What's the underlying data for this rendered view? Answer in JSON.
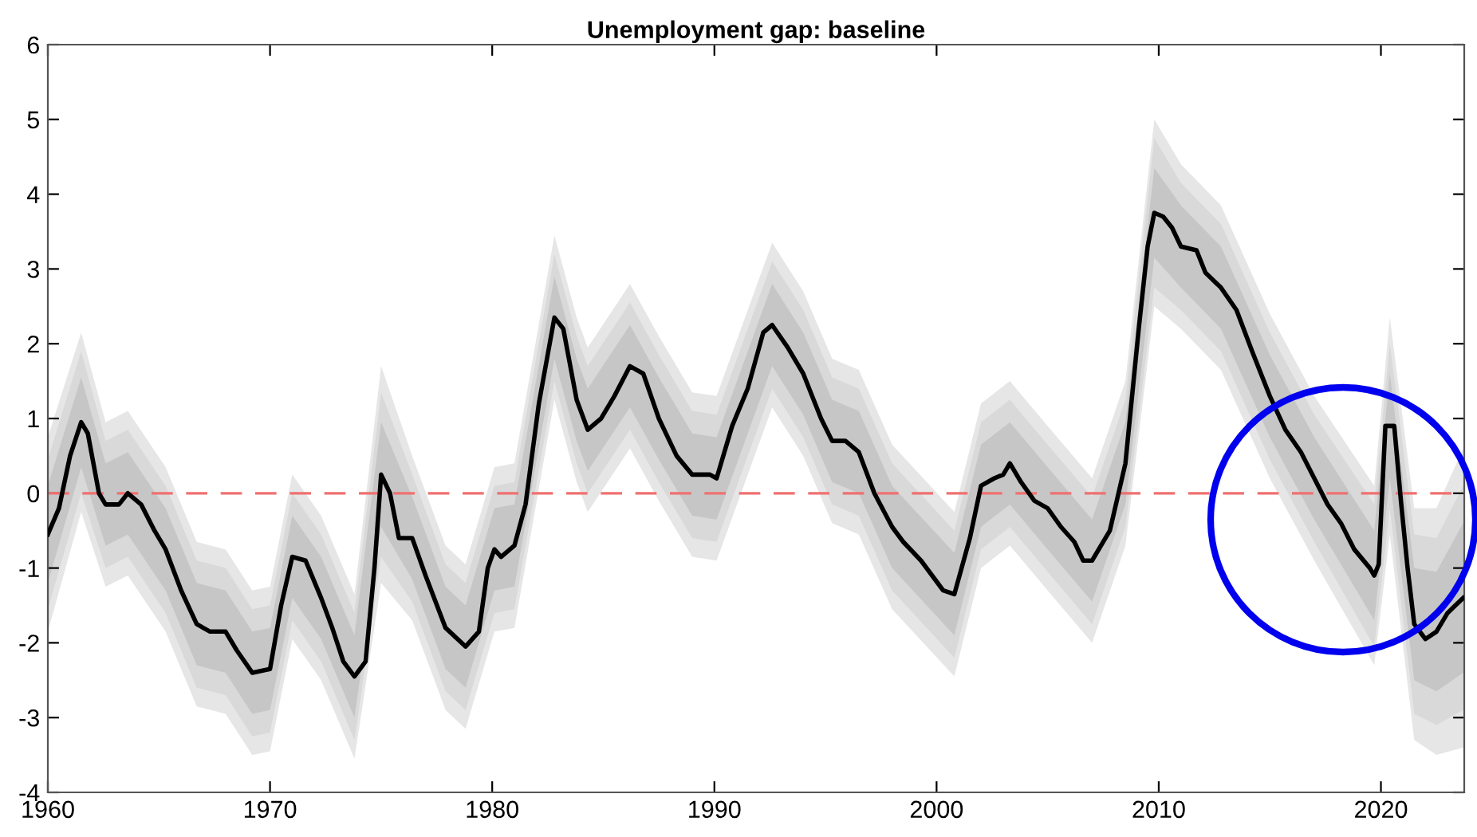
{
  "chart_data": {
    "type": "line",
    "title": "Unemployment gap: baseline",
    "xlim": [
      1960,
      2023.75
    ],
    "ylim": [
      -4,
      6
    ],
    "xticks": [
      1960,
      1970,
      1980,
      1990,
      2000,
      2010,
      2020
    ],
    "yticks": [
      -4,
      -3,
      -2,
      -1,
      0,
      1,
      2,
      3,
      4,
      5,
      6
    ],
    "grid": false,
    "marker": "none",
    "ref_lines": [
      {
        "axis": "y",
        "value": 0,
        "color": "#f07070",
        "line_style": "dashed"
      }
    ],
    "series": [
      {
        "type": "line",
        "color": "#e6e6e6",
        "x": [
          1960.0,
          1961.5,
          1962.6,
          1963.6,
          1965.3,
          1966.7,
          1968.0,
          1969.2,
          1970.0,
          1971.0,
          1972.3,
          1973.8,
          1975.0,
          1976.4,
          1977.9,
          1978.8,
          1980.1,
          1981.0,
          1982.8,
          1983.8,
          1984.3,
          1986.2,
          1987.5,
          1989.0,
          1990.1,
          1992.6,
          1994.0,
          1995.3,
          1996.5,
          1998.0,
          2000.8,
          2002.0,
          2003.3,
          2005.0,
          2007.0,
          2008.5,
          2009.8,
          2011.0,
          2012.8,
          2015.0,
          2017.0,
          2019.7,
          2020.4,
          2021.5,
          2022.5,
          2023.7
        ],
        "values": [
          null,
          null,
          null,
          null,
          null,
          null,
          null,
          null,
          null,
          null,
          null,
          null,
          null,
          null,
          null,
          null,
          null,
          null,
          null,
          null,
          null,
          null,
          null,
          null,
          null,
          null,
          null,
          null,
          null,
          null,
          null,
          null,
          null,
          null,
          null,
          null,
          null,
          null,
          null,
          null,
          null,
          null,
          null,
          null,
          null,
          null
        ],
        "upper": [
          0.75,
          2.15,
          0.95,
          1.1,
          0.35,
          -0.65,
          -0.75,
          -1.3,
          -1.25,
          0.25,
          -0.3,
          -1.35,
          1.7,
          0.5,
          -0.7,
          -0.95,
          0.35,
          0.4,
          3.45,
          2.35,
          1.95,
          2.8,
          2.1,
          1.35,
          1.3,
          3.35,
          2.7,
          1.8,
          1.65,
          0.65,
          -0.25,
          1.2,
          1.5,
          0.9,
          0.2,
          1.5,
          5.0,
          4.4,
          3.85,
          2.4,
          1.3,
          0.1,
          2.35,
          -0.2,
          -0.2,
          0.6
        ],
        "lower": [
          -1.85,
          -0.25,
          -1.25,
          -1.1,
          -1.85,
          -2.85,
          -2.95,
          -3.5,
          -3.45,
          -1.95,
          -2.5,
          -3.55,
          -1.2,
          -1.7,
          -2.9,
          -3.15,
          -1.85,
          -1.8,
          1.25,
          0.15,
          -0.25,
          0.6,
          -0.1,
          -0.85,
          -0.9,
          1.15,
          0.5,
          -0.4,
          -0.55,
          -1.55,
          -2.45,
          -1.0,
          -0.7,
          -1.3,
          -2.0,
          -0.7,
          2.5,
          2.2,
          1.65,
          0.2,
          -0.9,
          -2.3,
          -0.55,
          -3.3,
          -3.5,
          -3.4
        ]
      },
      {
        "type": "line",
        "color": "#d9d9d9",
        "x": [
          1960.0,
          1961.5,
          1962.6,
          1963.6,
          1965.3,
          1966.7,
          1968.0,
          1969.2,
          1970.0,
          1971.0,
          1972.3,
          1973.8,
          1975.0,
          1976.4,
          1977.9,
          1978.8,
          1980.1,
          1981.0,
          1982.8,
          1983.8,
          1984.3,
          1986.2,
          1987.5,
          1989.0,
          1990.1,
          1992.6,
          1994.0,
          1995.3,
          1996.5,
          1998.0,
          2000.8,
          2002.0,
          2003.3,
          2005.0,
          2007.0,
          2008.5,
          2009.8,
          2011.0,
          2012.8,
          2015.0,
          2017.0,
          2019.7,
          2020.4,
          2021.5,
          2022.5,
          2023.7
        ],
        "values": [
          null,
          null,
          null,
          null,
          null,
          null,
          null,
          null,
          null,
          null,
          null,
          null,
          null,
          null,
          null,
          null,
          null,
          null,
          null,
          null,
          null,
          null,
          null,
          null,
          null,
          null,
          null,
          null,
          null,
          null,
          null,
          null,
          null,
          null,
          null,
          null,
          null,
          null,
          null,
          null,
          null,
          null,
          null,
          null,
          null,
          null
        ],
        "upper": [
          0.45,
          1.9,
          0.7,
          0.85,
          0.1,
          -0.9,
          -1.0,
          -1.55,
          -1.5,
          0.0,
          -0.55,
          -1.6,
          1.35,
          0.25,
          -0.95,
          -1.2,
          0.1,
          0.15,
          3.2,
          2.1,
          1.7,
          2.55,
          1.85,
          1.1,
          1.05,
          3.1,
          2.45,
          1.55,
          1.4,
          0.4,
          -0.5,
          0.95,
          1.25,
          0.65,
          -0.05,
          1.25,
          4.75,
          4.15,
          3.6,
          2.15,
          1.05,
          -0.15,
          2.0,
          -0.55,
          -0.6,
          0.1
        ],
        "lower": [
          -1.55,
          0.0,
          -1.0,
          -0.85,
          -1.6,
          -2.6,
          -2.7,
          -3.25,
          -3.2,
          -1.7,
          -2.25,
          -3.3,
          -0.85,
          -1.45,
          -2.65,
          -2.9,
          -1.6,
          -1.55,
          1.5,
          0.4,
          0.0,
          0.85,
          0.15,
          -0.6,
          -0.65,
          1.4,
          0.75,
          -0.15,
          -0.3,
          -1.3,
          -2.2,
          -0.75,
          -0.45,
          -1.05,
          -1.75,
          -0.45,
          2.75,
          2.45,
          1.9,
          0.45,
          -0.65,
          -2.05,
          -0.2,
          -2.95,
          -3.1,
          -2.9
        ]
      },
      {
        "type": "line",
        "color": "#c6c6c6",
        "x": [
          1960.0,
          1961.5,
          1962.6,
          1963.6,
          1965.3,
          1966.7,
          1968.0,
          1969.2,
          1970.0,
          1971.0,
          1972.3,
          1973.8,
          1975.0,
          1976.4,
          1977.9,
          1978.8,
          1980.1,
          1981.0,
          1982.8,
          1983.8,
          1984.3,
          1986.2,
          1987.5,
          1989.0,
          1990.1,
          1992.6,
          1994.0,
          1995.3,
          1996.5,
          1998.0,
          2000.8,
          2002.0,
          2003.3,
          2005.0,
          2007.0,
          2008.5,
          2009.8,
          2011.0,
          2012.8,
          2015.0,
          2017.0,
          2019.7,
          2020.4,
          2021.5,
          2022.5,
          2023.7
        ],
        "values": [
          null,
          null,
          null,
          null,
          null,
          null,
          null,
          null,
          null,
          null,
          null,
          null,
          null,
          null,
          null,
          null,
          null,
          null,
          null,
          null,
          null,
          null,
          null,
          null,
          null,
          null,
          null,
          null,
          null,
          null,
          null,
          null,
          null,
          null,
          null,
          null,
          null,
          null,
          null,
          null,
          null,
          null,
          null,
          null,
          null,
          null
        ],
        "upper": [
          0.1,
          1.55,
          0.4,
          0.55,
          -0.2,
          -1.2,
          -1.3,
          -1.85,
          -1.8,
          -0.3,
          -0.85,
          -1.9,
          0.95,
          -0.05,
          -1.25,
          -1.5,
          -0.2,
          -0.15,
          2.9,
          1.8,
          1.4,
          2.25,
          1.55,
          0.8,
          0.75,
          2.8,
          2.15,
          1.25,
          1.1,
          0.1,
          -0.8,
          0.65,
          0.95,
          0.35,
          -0.35,
          0.95,
          4.35,
          3.85,
          3.3,
          1.85,
          0.75,
          -0.5,
          1.6,
          -1.0,
          -1.05,
          -0.4
        ],
        "lower": [
          -1.2,
          0.35,
          -0.7,
          -0.55,
          -1.3,
          -2.3,
          -2.4,
          -2.95,
          -2.9,
          -1.4,
          -1.95,
          -3.0,
          -0.45,
          -1.15,
          -2.35,
          -2.6,
          -1.3,
          -1.25,
          1.8,
          0.7,
          0.3,
          1.15,
          0.45,
          -0.3,
          -0.35,
          1.7,
          1.05,
          0.15,
          0.0,
          -1.0,
          -1.9,
          -0.45,
          -0.15,
          -0.75,
          -1.45,
          -0.15,
          3.15,
          2.75,
          2.2,
          0.75,
          -0.35,
          -1.7,
          0.2,
          -2.5,
          -2.65,
          -2.4
        ]
      },
      {
        "type": "line",
        "color": "#000000",
        "x": [
          1960.0,
          1960.5,
          1961.0,
          1961.5,
          1961.8,
          1962.3,
          1962.6,
          1963.2,
          1963.6,
          1964.2,
          1964.8,
          1965.3,
          1966.0,
          1966.7,
          1967.3,
          1968.0,
          1968.5,
          1969.2,
          1970.0,
          1970.5,
          1971.0,
          1971.6,
          1972.3,
          1972.8,
          1973.3,
          1973.8,
          1974.3,
          1974.7,
          1975.0,
          1975.4,
          1975.8,
          1976.4,
          1977.0,
          1977.9,
          1978.8,
          1979.4,
          1979.8,
          1980.1,
          1980.4,
          1981.0,
          1981.5,
          1982.1,
          1982.8,
          1983.2,
          1983.8,
          1984.3,
          1984.9,
          1985.5,
          1986.2,
          1986.8,
          1987.5,
          1988.3,
          1989.0,
          1989.8,
          1990.1,
          1990.8,
          1991.5,
          1992.2,
          1992.6,
          1993.3,
          1994.0,
          1994.8,
          1995.3,
          1995.9,
          1996.5,
          1997.2,
          1998.0,
          1998.5,
          1999.3,
          2000.3,
          2000.8,
          2001.5,
          2002.0,
          2002.6,
          2003.0,
          2003.3,
          2003.8,
          2004.4,
          2005.0,
          2005.6,
          2006.2,
          2006.6,
          2007.0,
          2007.8,
          2008.5,
          2009.1,
          2009.5,
          2009.8,
          2010.2,
          2010.6,
          2011.0,
          2011.7,
          2012.1,
          2012.8,
          2013.5,
          2014.2,
          2015.0,
          2015.7,
          2016.4,
          2017.0,
          2017.6,
          2018.2,
          2018.8,
          2019.5,
          2019.7,
          2019.9,
          2020.2,
          2020.6,
          2020.9,
          2021.2,
          2021.5,
          2022.0,
          2022.5,
          2023.0,
          2023.7
        ],
        "values": [
          -0.55,
          -0.2,
          0.5,
          0.95,
          0.8,
          0.0,
          -0.15,
          -0.15,
          0.0,
          -0.15,
          -0.5,
          -0.75,
          -1.3,
          -1.75,
          -1.85,
          -1.85,
          -2.1,
          -2.4,
          -2.35,
          -1.5,
          -0.85,
          -0.9,
          -1.4,
          -1.8,
          -2.25,
          -2.45,
          -2.25,
          -1.0,
          0.25,
          0.0,
          -0.6,
          -0.6,
          -1.1,
          -1.8,
          -2.05,
          -1.85,
          -1.0,
          -0.75,
          -0.85,
          -0.7,
          -0.15,
          1.2,
          2.35,
          2.2,
          1.25,
          0.85,
          1.0,
          1.3,
          1.7,
          1.6,
          1.0,
          0.5,
          0.25,
          0.25,
          0.2,
          0.9,
          1.4,
          2.15,
          2.25,
          1.95,
          1.6,
          1.0,
          0.7,
          0.7,
          0.55,
          0.0,
          -0.45,
          -0.65,
          -0.9,
          -1.3,
          -1.35,
          -0.6,
          0.1,
          0.2,
          0.25,
          0.4,
          0.15,
          -0.1,
          -0.2,
          -0.45,
          -0.65,
          -0.9,
          -0.9,
          -0.5,
          0.4,
          2.2,
          3.3,
          3.75,
          3.7,
          3.55,
          3.3,
          3.25,
          2.95,
          2.75,
          2.45,
          1.9,
          1.3,
          0.85,
          0.55,
          0.2,
          -0.15,
          -0.4,
          -0.75,
          -1.0,
          -1.1,
          -0.95,
          0.9,
          0.9,
          -0.1,
          -1.0,
          -1.75,
          -1.95,
          -1.85,
          -1.6,
          -1.4
        ]
      }
    ]
  }
}
